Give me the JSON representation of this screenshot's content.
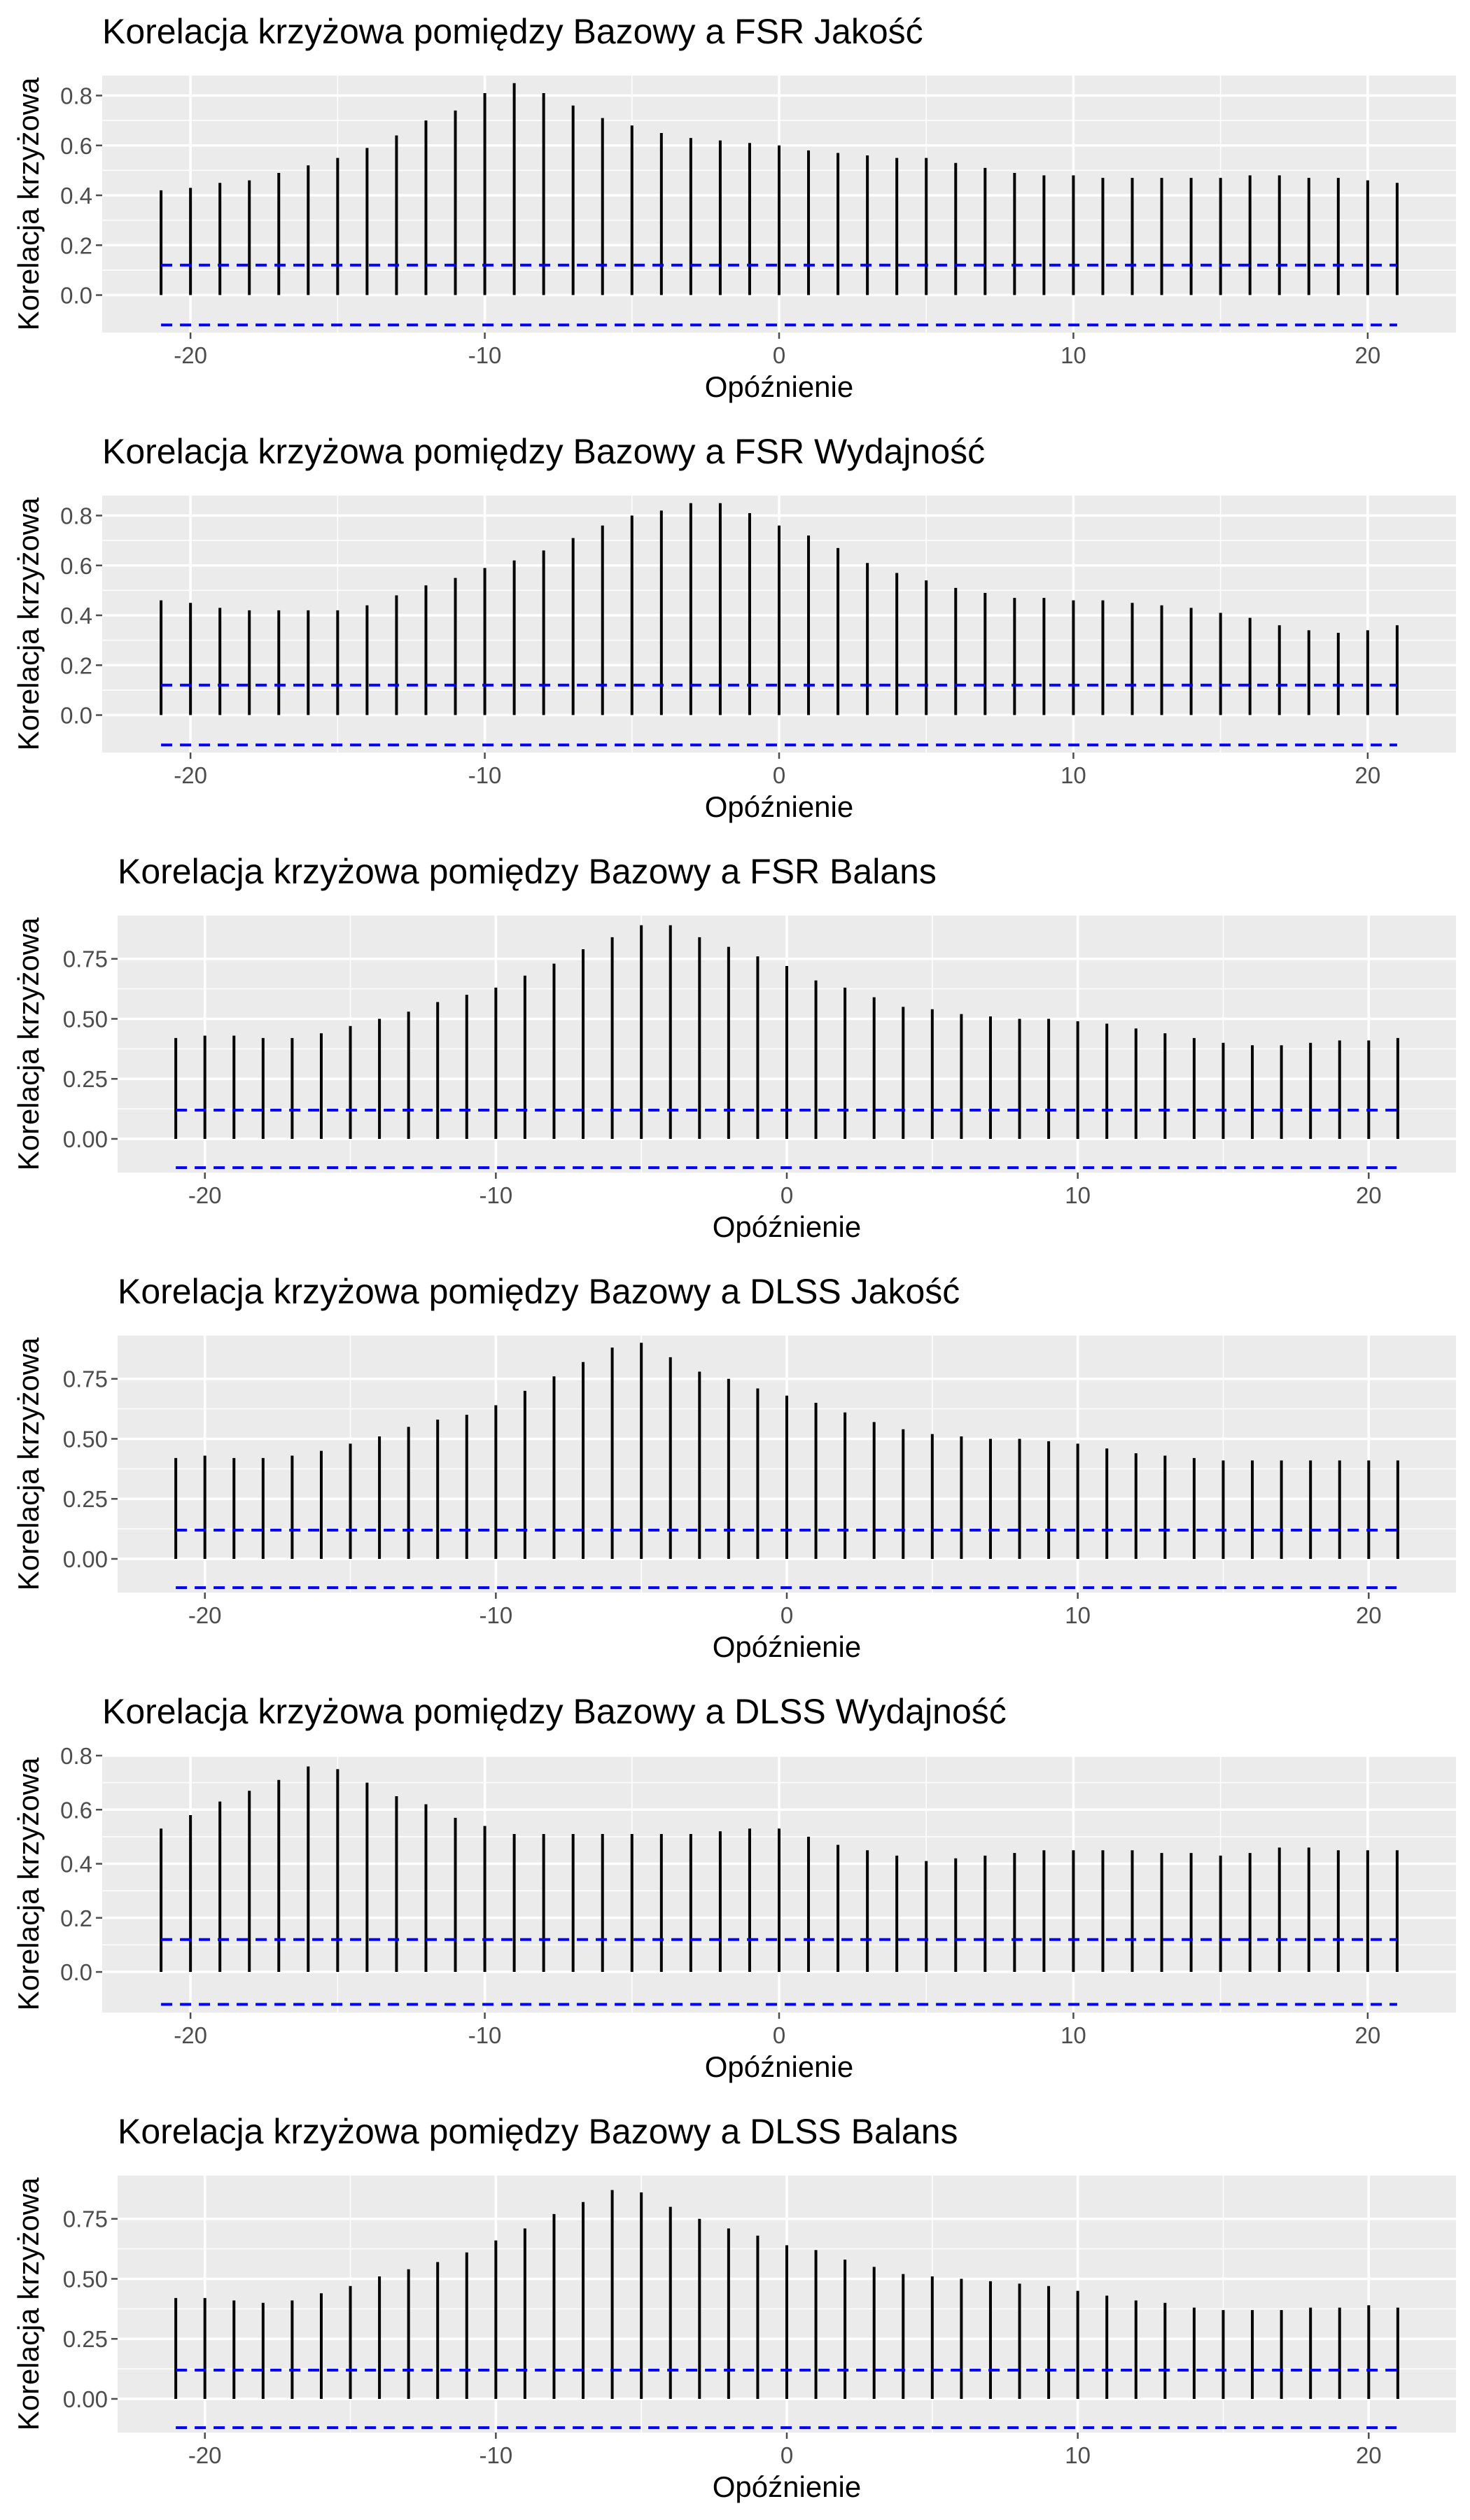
{
  "theme": {
    "panel_background": "#ebebeb",
    "gridline_color": "#ffffff",
    "bar_color": "#000000",
    "conf_line_color": "#0000ff",
    "tick_color": "#4d4d4d"
  },
  "chart_data": [
    {
      "type": "bar",
      "title": "Korelacja krzyżowa pomiędzy Bazowy a FSR Jakość",
      "xlabel": "Opóźnienie",
      "ylabel": "Korelacja krzyżowa",
      "xlim": [
        -23,
        23
      ],
      "ylim": [
        -0.15,
        0.88
      ],
      "x_ticks": [
        -20,
        -10,
        0,
        10,
        20
      ],
      "x_tick_labels": [
        "-20",
        "-10",
        "0",
        "10",
        "20"
      ],
      "y_ticks": [
        0,
        0.2,
        0.4,
        0.6,
        0.8
      ],
      "y_tick_labels": [
        "0.0",
        "0.2",
        "0.4",
        "0.6",
        "0.8"
      ],
      "confidence_limits": [
        0.12,
        -0.12
      ],
      "x": [
        -21,
        -20,
        -19,
        -18,
        -17,
        -16,
        -15,
        -14,
        -13,
        -12,
        -11,
        -10,
        -9,
        -8,
        -7,
        -6,
        -5,
        -4,
        -3,
        -2,
        -1,
        0,
        1,
        2,
        3,
        4,
        5,
        6,
        7,
        8,
        9,
        10,
        11,
        12,
        13,
        14,
        15,
        16,
        17,
        18,
        19,
        20,
        21
      ],
      "values": [
        0.42,
        0.43,
        0.45,
        0.46,
        0.49,
        0.52,
        0.55,
        0.59,
        0.64,
        0.7,
        0.74,
        0.81,
        0.85,
        0.81,
        0.76,
        0.71,
        0.68,
        0.65,
        0.63,
        0.62,
        0.61,
        0.6,
        0.58,
        0.57,
        0.56,
        0.55,
        0.55,
        0.53,
        0.51,
        0.49,
        0.48,
        0.48,
        0.47,
        0.47,
        0.47,
        0.47,
        0.47,
        0.48,
        0.48,
        0.47,
        0.47,
        0.46,
        0.45
      ]
    },
    {
      "type": "bar",
      "title": "Korelacja krzyżowa pomiędzy Bazowy a FSR Wydajność",
      "xlabel": "Opóźnienie",
      "ylabel": "Korelacja krzyżowa",
      "xlim": [
        -23,
        23
      ],
      "ylim": [
        -0.15,
        0.88
      ],
      "x_ticks": [
        -20,
        -10,
        0,
        10,
        20
      ],
      "x_tick_labels": [
        "-20",
        "-10",
        "0",
        "10",
        "20"
      ],
      "y_ticks": [
        0,
        0.2,
        0.4,
        0.6,
        0.8
      ],
      "y_tick_labels": [
        "0.0",
        "0.2",
        "0.4",
        "0.6",
        "0.8"
      ],
      "confidence_limits": [
        0.12,
        -0.12
      ],
      "x": [
        -21,
        -20,
        -19,
        -18,
        -17,
        -16,
        -15,
        -14,
        -13,
        -12,
        -11,
        -10,
        -9,
        -8,
        -7,
        -6,
        -5,
        -4,
        -3,
        -2,
        -1,
        0,
        1,
        2,
        3,
        4,
        5,
        6,
        7,
        8,
        9,
        10,
        11,
        12,
        13,
        14,
        15,
        16,
        17,
        18,
        19,
        20,
        21
      ],
      "values": [
        0.46,
        0.45,
        0.43,
        0.42,
        0.42,
        0.42,
        0.42,
        0.44,
        0.48,
        0.52,
        0.55,
        0.59,
        0.62,
        0.66,
        0.71,
        0.76,
        0.8,
        0.82,
        0.85,
        0.85,
        0.81,
        0.76,
        0.72,
        0.67,
        0.61,
        0.57,
        0.54,
        0.51,
        0.49,
        0.47,
        0.47,
        0.46,
        0.46,
        0.45,
        0.44,
        0.43,
        0.41,
        0.39,
        0.36,
        0.34,
        0.33,
        0.34,
        0.36
      ]
    },
    {
      "type": "bar",
      "title": "Korelacja krzyżowa pomiędzy Bazowy a FSR Balans",
      "xlabel": "Opóźnienie",
      "ylabel": "Korelacja krzyżowa",
      "xlim": [
        -23,
        23
      ],
      "ylim": [
        -0.14,
        0.93
      ],
      "x_ticks": [
        -20,
        -10,
        0,
        10,
        20
      ],
      "x_tick_labels": [
        "-20",
        "-10",
        "0",
        "10",
        "20"
      ],
      "y_ticks": [
        0,
        0.25,
        0.5,
        0.75
      ],
      "y_tick_labels": [
        "0.00",
        "0.25",
        "0.50",
        "0.75"
      ],
      "confidence_limits": [
        0.12,
        -0.12
      ],
      "x": [
        -21,
        -20,
        -19,
        -18,
        -17,
        -16,
        -15,
        -14,
        -13,
        -12,
        -11,
        -10,
        -9,
        -8,
        -7,
        -6,
        -5,
        -4,
        -3,
        -2,
        -1,
        0,
        1,
        2,
        3,
        4,
        5,
        6,
        7,
        8,
        9,
        10,
        11,
        12,
        13,
        14,
        15,
        16,
        17,
        18,
        19,
        20,
        21
      ],
      "values": [
        0.42,
        0.43,
        0.43,
        0.42,
        0.42,
        0.44,
        0.47,
        0.5,
        0.53,
        0.57,
        0.6,
        0.63,
        0.68,
        0.73,
        0.79,
        0.84,
        0.89,
        0.89,
        0.84,
        0.8,
        0.76,
        0.72,
        0.66,
        0.63,
        0.59,
        0.55,
        0.54,
        0.52,
        0.51,
        0.5,
        0.5,
        0.49,
        0.48,
        0.46,
        0.44,
        0.42,
        0.4,
        0.39,
        0.39,
        0.4,
        0.41,
        0.41,
        0.42
      ]
    },
    {
      "type": "bar",
      "title": "Korelacja krzyżowa pomiędzy Bazowy a DLSS Jakość",
      "xlabel": "Opóźnienie",
      "ylabel": "Korelacja krzyżowa",
      "xlim": [
        -23,
        23
      ],
      "ylim": [
        -0.14,
        0.93
      ],
      "x_ticks": [
        -20,
        -10,
        0,
        10,
        20
      ],
      "x_tick_labels": [
        "-20",
        "-10",
        "0",
        "10",
        "20"
      ],
      "y_ticks": [
        0,
        0.25,
        0.5,
        0.75
      ],
      "y_tick_labels": [
        "0.00",
        "0.25",
        "0.50",
        "0.75"
      ],
      "confidence_limits": [
        0.12,
        -0.12
      ],
      "x": [
        -21,
        -20,
        -19,
        -18,
        -17,
        -16,
        -15,
        -14,
        -13,
        -12,
        -11,
        -10,
        -9,
        -8,
        -7,
        -6,
        -5,
        -4,
        -3,
        -2,
        -1,
        0,
        1,
        2,
        3,
        4,
        5,
        6,
        7,
        8,
        9,
        10,
        11,
        12,
        13,
        14,
        15,
        16,
        17,
        18,
        19,
        20,
        21
      ],
      "values": [
        0.42,
        0.43,
        0.42,
        0.42,
        0.43,
        0.45,
        0.48,
        0.51,
        0.55,
        0.58,
        0.6,
        0.64,
        0.7,
        0.76,
        0.82,
        0.88,
        0.9,
        0.84,
        0.78,
        0.75,
        0.71,
        0.68,
        0.65,
        0.61,
        0.57,
        0.54,
        0.52,
        0.51,
        0.5,
        0.5,
        0.49,
        0.48,
        0.46,
        0.44,
        0.43,
        0.42,
        0.41,
        0.41,
        0.41,
        0.41,
        0.41,
        0.41,
        0.41
      ]
    },
    {
      "type": "bar",
      "title": "Korelacja krzyżowa pomiędzy Bazowy a DLSS Wydajność",
      "xlabel": "Opóźnienie",
      "ylabel": "Korelacja krzyżowa",
      "xlim": [
        -23,
        23
      ],
      "ylim": [
        -0.15,
        0.8
      ],
      "x_ticks": [
        -20,
        -10,
        0,
        10,
        20
      ],
      "x_tick_labels": [
        "-20",
        "-10",
        "0",
        "10",
        "20"
      ],
      "y_ticks": [
        0,
        0.2,
        0.4,
        0.6,
        0.8
      ],
      "y_tick_labels": [
        "0.0",
        "0.2",
        "0.4",
        "0.6",
        "0.8"
      ],
      "confidence_limits": [
        0.12,
        -0.12
      ],
      "x": [
        -21,
        -20,
        -19,
        -18,
        -17,
        -16,
        -15,
        -14,
        -13,
        -12,
        -11,
        -10,
        -9,
        -8,
        -7,
        -6,
        -5,
        -4,
        -3,
        -2,
        -1,
        0,
        1,
        2,
        3,
        4,
        5,
        6,
        7,
        8,
        9,
        10,
        11,
        12,
        13,
        14,
        15,
        16,
        17,
        18,
        19,
        20,
        21
      ],
      "values": [
        0.53,
        0.58,
        0.63,
        0.67,
        0.71,
        0.76,
        0.75,
        0.7,
        0.65,
        0.62,
        0.57,
        0.54,
        0.51,
        0.51,
        0.51,
        0.51,
        0.51,
        0.51,
        0.51,
        0.52,
        0.53,
        0.53,
        0.5,
        0.47,
        0.45,
        0.43,
        0.41,
        0.42,
        0.43,
        0.44,
        0.45,
        0.45,
        0.45,
        0.45,
        0.44,
        0.44,
        0.43,
        0.44,
        0.46,
        0.46,
        0.45,
        0.45,
        0.45
      ]
    },
    {
      "type": "bar",
      "title": "Korelacja krzyżowa pomiędzy Bazowy a DLSS Balans",
      "xlabel": "Opóźnienie",
      "ylabel": "Korelacja krzyżowa",
      "xlim": [
        -23,
        23
      ],
      "ylim": [
        -0.14,
        0.93
      ],
      "x_ticks": [
        -20,
        -10,
        0,
        10,
        20
      ],
      "x_tick_labels": [
        "-20",
        "-10",
        "0",
        "10",
        "20"
      ],
      "y_ticks": [
        0,
        0.25,
        0.5,
        0.75
      ],
      "y_tick_labels": [
        "0.00",
        "0.25",
        "0.50",
        "0.75"
      ],
      "confidence_limits": [
        0.12,
        -0.12
      ],
      "x": [
        -21,
        -20,
        -19,
        -18,
        -17,
        -16,
        -15,
        -14,
        -13,
        -12,
        -11,
        -10,
        -9,
        -8,
        -7,
        -6,
        -5,
        -4,
        -3,
        -2,
        -1,
        0,
        1,
        2,
        3,
        4,
        5,
        6,
        7,
        8,
        9,
        10,
        11,
        12,
        13,
        14,
        15,
        16,
        17,
        18,
        19,
        20,
        21
      ],
      "values": [
        0.42,
        0.42,
        0.41,
        0.4,
        0.41,
        0.44,
        0.47,
        0.51,
        0.54,
        0.57,
        0.61,
        0.66,
        0.71,
        0.77,
        0.82,
        0.87,
        0.86,
        0.8,
        0.75,
        0.71,
        0.68,
        0.64,
        0.62,
        0.58,
        0.55,
        0.52,
        0.51,
        0.5,
        0.49,
        0.48,
        0.47,
        0.45,
        0.43,
        0.41,
        0.4,
        0.38,
        0.37,
        0.37,
        0.37,
        0.38,
        0.38,
        0.39,
        0.38
      ]
    }
  ]
}
